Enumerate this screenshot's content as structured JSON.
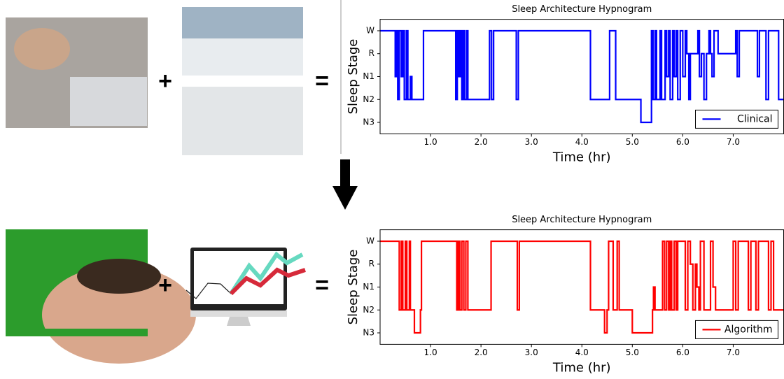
{
  "symbols": {
    "plus": "+",
    "equals": "="
  },
  "chart_data": [
    {
      "type": "line",
      "title": "Sleep Architecture Hypnogram",
      "x_label": "Time (hr)",
      "y_label": "Sleep Stage",
      "xlim": [
        0,
        8
      ],
      "ylim": [
        -0.5,
        4.5
      ],
      "xticks": [
        {
          "value": 1,
          "label": "1.0"
        },
        {
          "value": 2,
          "label": "2.0"
        },
        {
          "value": 3,
          "label": "3.0"
        },
        {
          "value": 4,
          "label": "4.0"
        },
        {
          "value": 5,
          "label": "5.0"
        },
        {
          "value": 6,
          "label": "6.0"
        },
        {
          "value": 7,
          "label": "7.0"
        }
      ],
      "yticks": [
        {
          "value": 0,
          "label": "N3"
        },
        {
          "value": 1,
          "label": "N2"
        },
        {
          "value": 2,
          "label": "N1"
        },
        {
          "value": 3,
          "label": "R"
        },
        {
          "value": 4,
          "label": "W"
        }
      ],
      "legend": "lower right",
      "series": [
        {
          "name": "Clinical",
          "color": "#0000ff",
          "x": [
            0,
            0.3,
            0.32,
            0.35,
            0.38,
            0.42,
            0.45,
            0.48,
            0.52,
            0.55,
            0.6,
            0.63,
            0.86,
            1.5,
            1.53,
            1.56,
            1.59,
            1.62,
            1.65,
            1.68,
            1.72,
            1.74,
            2.17,
            2.21,
            2.25,
            2.7,
            2.74,
            4.17,
            4.55,
            4.67,
            5.17,
            5.38,
            5.41,
            5.45,
            5.48,
            5.55,
            5.58,
            5.65,
            5.68,
            5.72,
            5.75,
            5.8,
            5.83,
            5.87,
            5.9,
            5.95,
            6.0,
            6.05,
            6.08,
            6.12,
            6.15,
            6.3,
            6.33,
            6.37,
            6.42,
            6.47,
            6.52,
            6.55,
            6.58,
            6.62,
            6.7,
            7.05,
            7.08,
            7.12,
            7.48,
            7.52,
            7.65,
            7.7,
            7.9
          ],
          "values": [
            4,
            2,
            4,
            1,
            4,
            2,
            4,
            1,
            4,
            1,
            2,
            1,
            4,
            1,
            4,
            2,
            4,
            1,
            4,
            1,
            4,
            1,
            4,
            1,
            4,
            1,
            4,
            1,
            4,
            1,
            0,
            4,
            1,
            4,
            1,
            4,
            1,
            4,
            2,
            4,
            1,
            4,
            2,
            4,
            1,
            4,
            2,
            4,
            3,
            1,
            3,
            4,
            2,
            3,
            1,
            3,
            4,
            3,
            2,
            4,
            3,
            4,
            2,
            4,
            2,
            4,
            1,
            4,
            1
          ]
        }
      ]
    },
    {
      "type": "line",
      "title": "Sleep Architecture Hypnogram",
      "x_label": "Time (hr)",
      "y_label": "Sleep Stage",
      "xlim": [
        0,
        8
      ],
      "ylim": [
        -0.5,
        4.5
      ],
      "xticks": [
        {
          "value": 1,
          "label": "1.0"
        },
        {
          "value": 2,
          "label": "2.0"
        },
        {
          "value": 3,
          "label": "3.0"
        },
        {
          "value": 4,
          "label": "4.0"
        },
        {
          "value": 5,
          "label": "5.0"
        },
        {
          "value": 6,
          "label": "6.0"
        },
        {
          "value": 7,
          "label": "7.0"
        }
      ],
      "yticks": [
        {
          "value": 0,
          "label": "N3"
        },
        {
          "value": 1,
          "label": "N2"
        },
        {
          "value": 2,
          "label": "N1"
        },
        {
          "value": 3,
          "label": "R"
        },
        {
          "value": 4,
          "label": "W"
        }
      ],
      "legend": "lower right",
      "series": [
        {
          "name": "Algorithm",
          "color": "#ff0000",
          "x": [
            0,
            0.38,
            0.42,
            0.45,
            0.5,
            0.53,
            0.58,
            0.6,
            0.68,
            0.8,
            0.82,
            1.52,
            1.55,
            1.58,
            1.62,
            1.66,
            1.7,
            1.74,
            2.2,
            2.72,
            2.76,
            4.17,
            4.45,
            4.5,
            4.53,
            4.62,
            4.7,
            4.74,
            5.0,
            5.4,
            5.42,
            5.45,
            5.6,
            5.64,
            5.68,
            5.72,
            5.75,
            5.78,
            5.83,
            5.87,
            5.9,
            6.05,
            6.1,
            6.15,
            6.2,
            6.25,
            6.28,
            6.32,
            6.35,
            6.42,
            6.55,
            6.6,
            6.65,
            7.0,
            7.05,
            7.1,
            7.3,
            7.35,
            7.45,
            7.5,
            7.7,
            7.75,
            7.8
          ],
          "values": [
            4,
            1,
            4,
            1,
            4,
            1,
            4,
            1,
            0,
            1,
            4,
            1,
            4,
            1,
            4,
            1,
            4,
            1,
            4,
            1,
            4,
            1,
            0,
            1,
            4,
            1,
            4,
            1,
            0,
            1,
            2,
            1,
            4,
            1,
            4,
            1,
            4,
            1,
            4,
            1,
            4,
            1,
            4,
            3,
            1,
            3,
            2,
            1,
            4,
            1,
            4,
            2,
            1,
            4,
            1,
            4,
            1,
            4,
            1,
            4,
            1,
            4,
            1
          ]
        }
      ]
    }
  ]
}
